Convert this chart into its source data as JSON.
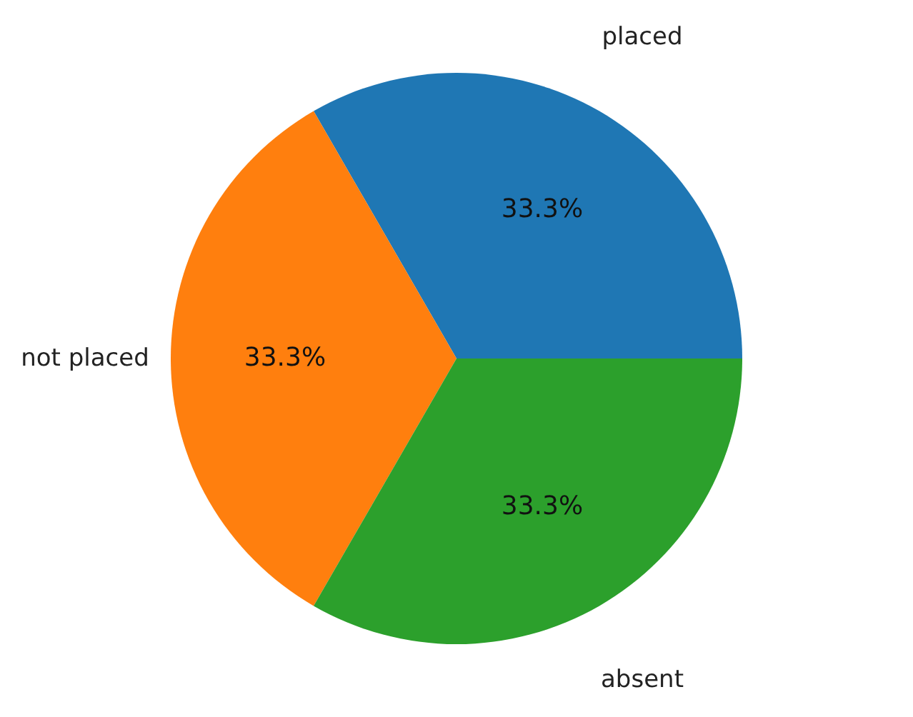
{
  "chart_data": {
    "type": "pie",
    "categories": [
      "placed",
      "not placed",
      "absent"
    ],
    "values": [
      33.3,
      33.3,
      33.3
    ],
    "colors": [
      "#1f77b4",
      "#ff7f0e",
      "#2ca02c"
    ],
    "value_labels": [
      "33.3%",
      "33.3%",
      "33.3%"
    ]
  }
}
